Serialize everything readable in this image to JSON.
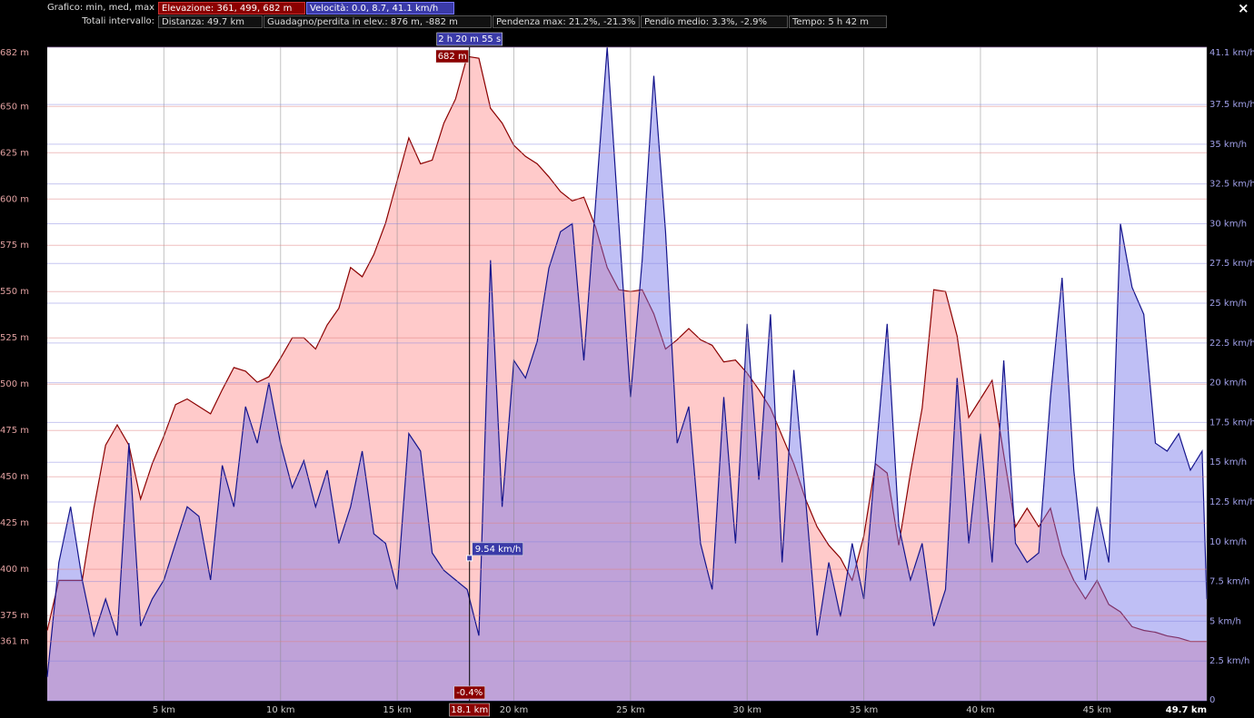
{
  "header": {
    "chart_label": "Grafico: min, med, max",
    "elevation": "Elevazione: 361, 499, 682 m",
    "speed": "Velocità: 0.0, 8.7, 41.1 km/h",
    "totals_label": "Totali intervallo:",
    "distance": "Distanza: 49.7 km",
    "gain_loss": "Guadagno/perdita in elev.: 876 m, -882 m",
    "max_grade": "Pendenza max: 21.2%, -21.3%",
    "avg_grade": "Pendio medio: 3.3%, -2.9%",
    "time": "Tempo: 5 h 42 m",
    "close": "×"
  },
  "chart_data": {
    "type": "area",
    "x": [
      0,
      0.5,
      1,
      1.5,
      2,
      2.5,
      3,
      3.5,
      4,
      4.5,
      5,
      5.5,
      6,
      6.5,
      7,
      7.5,
      8,
      8.5,
      9,
      9.5,
      10,
      10.5,
      11,
      11.5,
      12,
      12.5,
      13,
      13.5,
      14,
      14.5,
      15,
      15.5,
      16,
      16.5,
      17,
      17.5,
      18,
      18.5,
      19,
      19.5,
      20,
      20.5,
      21,
      21.5,
      22,
      22.5,
      23,
      23.5,
      24,
      24.5,
      25,
      25.5,
      26,
      26.5,
      27,
      27.5,
      28,
      28.5,
      29,
      29.5,
      30,
      30.5,
      31,
      31.5,
      32,
      32.5,
      33,
      33.5,
      34,
      34.5,
      35,
      35.5,
      36,
      36.5,
      37,
      37.5,
      38,
      38.5,
      39,
      39.5,
      40,
      40.5,
      41,
      41.5,
      42,
      42.5,
      43,
      43.5,
      44,
      44.5,
      45,
      45.5,
      46,
      46.5,
      47,
      47.5,
      48,
      48.5,
      49,
      49.5,
      49.7
    ],
    "series": [
      {
        "name": "Elevazione",
        "color": "#8b0000",
        "fill": "#ff8a8a",
        "axis": "y",
        "values": [
          367,
          394,
          394,
          394,
          433,
          467,
          478,
          467,
          438,
          457,
          472,
          489,
          492,
          488,
          484,
          497,
          509,
          507,
          501,
          504,
          514,
          525,
          525,
          519,
          532,
          541,
          563,
          558,
          570,
          587,
          610,
          633,
          619,
          621,
          641,
          654,
          677,
          676,
          649,
          641,
          629,
          623,
          619,
          612,
          604,
          599,
          601,
          585,
          563,
          551,
          550,
          551,
          538,
          519,
          524,
          530,
          524,
          521,
          512,
          513,
          506,
          497,
          487,
          472,
          457,
          438,
          423,
          413,
          406,
          394,
          418,
          457,
          452,
          413,
          452,
          487,
          551,
          550,
          526,
          482,
          492,
          502,
          462,
          423,
          433,
          423,
          433,
          408,
          394,
          384,
          394,
          381,
          377,
          369,
          367,
          366,
          364,
          363,
          361,
          361,
          361
        ]
      },
      {
        "name": "Velocità",
        "color": "#14148c",
        "fill": "#7070e8",
        "axis": "y2",
        "values": [
          1.5,
          8.7,
          12.2,
          7.6,
          4.1,
          6.4,
          4.1,
          16.2,
          4.7,
          6.4,
          7.6,
          9.9,
          12.2,
          11.6,
          7.6,
          14.8,
          12.2,
          18.5,
          16.2,
          20,
          16.2,
          13.4,
          15.1,
          12.2,
          14.5,
          9.9,
          12.2,
          15.7,
          10.5,
          9.9,
          7,
          16.8,
          15.7,
          9.3,
          8.2,
          7.6,
          7,
          4.1,
          27.7,
          12.2,
          21.4,
          20.3,
          22.6,
          27.2,
          29.5,
          30,
          21.4,
          31.2,
          41.1,
          30,
          19.1,
          27.7,
          39.3,
          29.5,
          16.2,
          18.5,
          9.9,
          7,
          19.1,
          9.9,
          23.7,
          13.9,
          24.3,
          8.7,
          20.8,
          12.8,
          4.1,
          8.7,
          5.3,
          9.9,
          6.4,
          15.1,
          23.7,
          11,
          7.6,
          9.9,
          4.7,
          7,
          20.3,
          9.9,
          16.8,
          8.7,
          21.4,
          9.9,
          8.7,
          9.3,
          19.1,
          26.6,
          14.5,
          7.6,
          12.2,
          8.7,
          30,
          26,
          24.3,
          16.2,
          15.7,
          16.8,
          14.5,
          15.7,
          6.4
        ]
      }
    ],
    "xlim": [
      0,
      49.7
    ],
    "xticks": [
      {
        "value": 5,
        "label": "5 km"
      },
      {
        "value": 10,
        "label": "10 km"
      },
      {
        "value": 15,
        "label": "15 km"
      },
      {
        "value": 20,
        "label": "20 km"
      },
      {
        "value": 25,
        "label": "25 km"
      },
      {
        "value": 30,
        "label": "30 km"
      },
      {
        "value": 35,
        "label": "35 km"
      },
      {
        "value": 40,
        "label": "40 km"
      },
      {
        "value": 45,
        "label": "45 km"
      },
      {
        "value": 49.7,
        "label": "49.7 km"
      }
    ],
    "ylim": [
      329,
      682
    ],
    "yticks": [
      {
        "value": 361,
        "label": "361 m"
      },
      {
        "value": 375,
        "label": "375 m"
      },
      {
        "value": 400,
        "label": "400 m"
      },
      {
        "value": 425,
        "label": "425 m"
      },
      {
        "value": 450,
        "label": "450 m"
      },
      {
        "value": 475,
        "label": "475 m"
      },
      {
        "value": 500,
        "label": "500 m"
      },
      {
        "value": 525,
        "label": "525 m"
      },
      {
        "value": 550,
        "label": "550 m"
      },
      {
        "value": 575,
        "label": "575 m"
      },
      {
        "value": 600,
        "label": "600 m"
      },
      {
        "value": 625,
        "label": "625 m"
      },
      {
        "value": 650,
        "label": "650 m"
      },
      {
        "value": 682,
        "label": "682 m"
      }
    ],
    "y2lim": [
      0,
      41.1
    ],
    "y2ticks": [
      0,
      {
        "value": 2.5,
        "label": "2.5 km/h"
      },
      {
        "value": 5,
        "label": "5 km/h"
      },
      {
        "value": 7.5,
        "label": "7.5 km/h"
      },
      {
        "value": 10,
        "label": "10 km/h"
      },
      {
        "value": 12.5,
        "label": "12.5 km/h"
      },
      {
        "value": 15,
        "label": "15 km/h"
      },
      {
        "value": 17.5,
        "label": "17.5 km/h"
      },
      {
        "value": 20,
        "label": "20 km/h"
      },
      {
        "value": 22.5,
        "label": "22.5 km/h"
      },
      {
        "value": 25,
        "label": "25 km/h"
      },
      {
        "value": 27.5,
        "label": "27.5 km/h"
      },
      {
        "value": 30,
        "label": "30 km/h"
      },
      {
        "value": 32.5,
        "label": "32.5 km/h"
      },
      {
        "value": 35,
        "label": "35 km/h"
      },
      {
        "value": 37.5,
        "label": "37.5 km/h"
      },
      {
        "value": 41.1,
        "label": "41.1 km/h"
      }
    ],
    "grid": true,
    "cursor": {
      "x": 18.1,
      "x_label": "18.1 km",
      "time": "2 h 20 m 55 s",
      "elevation": 682,
      "elevation_label": "682 m",
      "speed": 9.54,
      "speed_label": "9.54 km/h",
      "grade_label": "-0.4%"
    }
  }
}
